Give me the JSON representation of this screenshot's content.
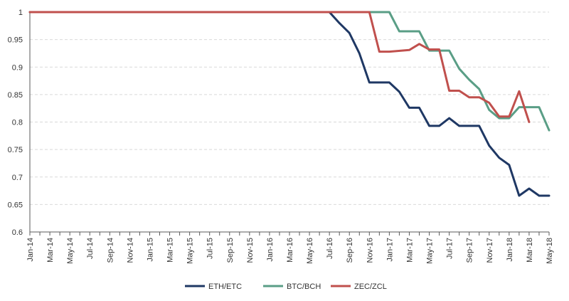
{
  "chart_data": {
    "type": "line",
    "title": "",
    "xlabel": "",
    "ylabel": "",
    "ylim": [
      0.6,
      1.0
    ],
    "yticks": [
      "0.6",
      "0.65",
      "0.7",
      "0.75",
      "0.8",
      "0.85",
      "0.9",
      "0.95",
      "1"
    ],
    "xticks": [
      "Jan-14",
      "Mar-14",
      "May-14",
      "Jul-14",
      "Sep-14",
      "Nov-14",
      "Jan-15",
      "Mar-15",
      "May-15",
      "Jul-15",
      "Sep-15",
      "Nov-15",
      "Jan-16",
      "Mar-16",
      "May-16",
      "Jul-16",
      "Sep-16",
      "Nov-16",
      "Jan-17",
      "Mar-17",
      "May-17",
      "Jul-17",
      "Sep-17",
      "Nov-17",
      "Jan-18",
      "Mar-18",
      "May-18"
    ],
    "x_start": "Jan-14",
    "x_end": "May-18",
    "grid": "horizontal-dashed",
    "legend_position": "bottom-center",
    "series": [
      {
        "name": "ETH/ETC",
        "color": "#1f3864",
        "points": [
          [
            "Jan-14",
            1.0
          ],
          [
            "Jul-16",
            1.0
          ],
          [
            "Aug-16",
            0.98
          ],
          [
            "Sep-16",
            0.962
          ],
          [
            "Oct-16",
            0.925
          ],
          [
            "Nov-16",
            0.872
          ],
          [
            "Dec-16",
            0.872
          ],
          [
            "Jan-17",
            0.872
          ],
          [
            "Feb-17",
            0.855
          ],
          [
            "Mar-17",
            0.826
          ],
          [
            "Apr-17",
            0.826
          ],
          [
            "May-17",
            0.793
          ],
          [
            "Jun-17",
            0.793
          ],
          [
            "Jul-17",
            0.807
          ],
          [
            "Aug-17",
            0.793
          ],
          [
            "Sep-17",
            0.793
          ],
          [
            "Oct-17",
            0.793
          ],
          [
            "Nov-17",
            0.757
          ],
          [
            "Dec-17",
            0.735
          ],
          [
            "Jan-18",
            0.722
          ],
          [
            "Feb-18",
            0.666
          ],
          [
            "Mar-18",
            0.679
          ],
          [
            "Apr-18",
            0.666
          ],
          [
            "May-18",
            0.666
          ]
        ]
      },
      {
        "name": "BTC/BCH",
        "color": "#5a9e86",
        "points": [
          [
            "Jan-14",
            1.0
          ],
          [
            "Jan-17",
            1.0
          ],
          [
            "Feb-17",
            0.965
          ],
          [
            "Mar-17",
            0.965
          ],
          [
            "Apr-17",
            0.965
          ],
          [
            "May-17",
            0.93
          ],
          [
            "Jun-17",
            0.93
          ],
          [
            "Jul-17",
            0.93
          ],
          [
            "Aug-17",
            0.897
          ],
          [
            "Sep-17",
            0.877
          ],
          [
            "Oct-17",
            0.86
          ],
          [
            "Nov-17",
            0.822
          ],
          [
            "Dec-17",
            0.807
          ],
          [
            "Jan-18",
            0.807
          ],
          [
            "Feb-18",
            0.827
          ],
          [
            "Mar-18",
            0.827
          ],
          [
            "Apr-18",
            0.827
          ],
          [
            "May-18",
            0.785
          ]
        ]
      },
      {
        "name": "ZEC/ZCL",
        "color": "#c0504d",
        "points": [
          [
            "Jan-14",
            1.0
          ],
          [
            "Nov-16",
            1.0
          ],
          [
            "Dec-16",
            0.928
          ],
          [
            "Jan-17",
            0.928
          ],
          [
            "Mar-17",
            0.931
          ],
          [
            "Apr-17",
            0.942
          ],
          [
            "May-17",
            0.932
          ],
          [
            "Jun-17",
            0.932
          ],
          [
            "Jul-17",
            0.857
          ],
          [
            "Aug-17",
            0.857
          ],
          [
            "Sep-17",
            0.845
          ],
          [
            "Oct-17",
            0.845
          ],
          [
            "Nov-17",
            0.835
          ],
          [
            "Dec-17",
            0.81
          ],
          [
            "Jan-18",
            0.81
          ],
          [
            "Feb-18",
            0.856
          ],
          [
            "Mar-18",
            0.8
          ]
        ]
      }
    ]
  }
}
